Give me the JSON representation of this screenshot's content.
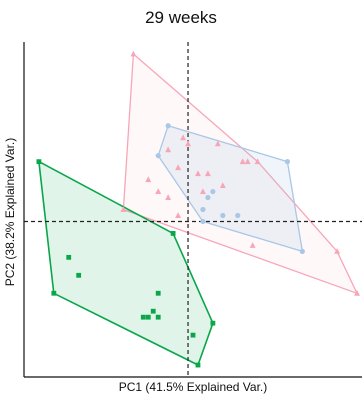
{
  "chart_data": {
    "type": "scatter",
    "title": "29 weeks",
    "xlabel": "PC1 (41.5% Explained Var.)",
    "ylabel": "PC2 (38.2% Explained Var.)",
    "xlim": [
      -3.3,
      3.5
    ],
    "ylim": [
      -2.6,
      3.0
    ],
    "grid": false,
    "legend": "none",
    "reference_lines": {
      "x": 0,
      "y": 0
    },
    "series": [
      {
        "marker": "triangle",
        "color": "#f7a6b8",
        "points": [
          [
            -1.1,
            2.8
          ],
          [
            -1.3,
            0.2
          ],
          [
            -0.8,
            0.7
          ],
          [
            -0.6,
            0.5
          ],
          [
            -0.4,
            1.2
          ],
          [
            -0.4,
            0.4
          ],
          [
            -0.2,
            0.9
          ],
          [
            -0.2,
            0.1
          ],
          [
            -0.1,
            1.4
          ],
          [
            0.0,
            1.3
          ],
          [
            0.2,
            0.8
          ],
          [
            0.3,
            0.5
          ],
          [
            0.4,
            0.8
          ],
          [
            0.6,
            1.3
          ],
          [
            0.7,
            0.6
          ],
          [
            1.1,
            1.0
          ],
          [
            1.2,
            1.0
          ],
          [
            1.4,
            1.0
          ],
          [
            1.3,
            -0.4
          ],
          [
            3.0,
            -0.5
          ],
          [
            3.4,
            -1.2
          ]
        ],
        "hull_color": "#f7a6b8",
        "hull_fill": "rgba(247,166,184,0.08)"
      },
      {
        "marker": "circle",
        "color": "#a9c7e6",
        "points": [
          [
            -0.4,
            1.6
          ],
          [
            -0.6,
            1.1
          ],
          [
            0.5,
            0.5
          ],
          [
            0.4,
            0.4
          ],
          [
            0.3,
            0.2
          ],
          [
            0.7,
            0.1
          ],
          [
            0.3,
            0.0
          ],
          [
            1.0,
            0.1
          ],
          [
            2.0,
            1.0
          ],
          [
            2.3,
            -0.5
          ]
        ],
        "hull_color": "#a9c7e6",
        "hull_fill": "rgba(169,199,230,0.18)"
      },
      {
        "marker": "square",
        "color": "#0aa64a",
        "points": [
          [
            -3.0,
            1.0
          ],
          [
            -2.7,
            -1.2
          ],
          [
            -2.4,
            -0.6
          ],
          [
            -2.2,
            -0.9
          ],
          [
            -0.6,
            -1.2
          ],
          [
            -0.9,
            -1.6
          ],
          [
            -0.7,
            -1.5
          ],
          [
            -0.8,
            -1.6
          ],
          [
            -0.6,
            -1.6
          ],
          [
            -0.3,
            -0.2
          ],
          [
            0.2,
            -2.4
          ],
          [
            0.1,
            -1.9
          ],
          [
            0.5,
            -1.7
          ]
        ],
        "hull_color": "#0aa64a",
        "hull_fill": "rgba(10,166,74,0.12)"
      }
    ]
  }
}
